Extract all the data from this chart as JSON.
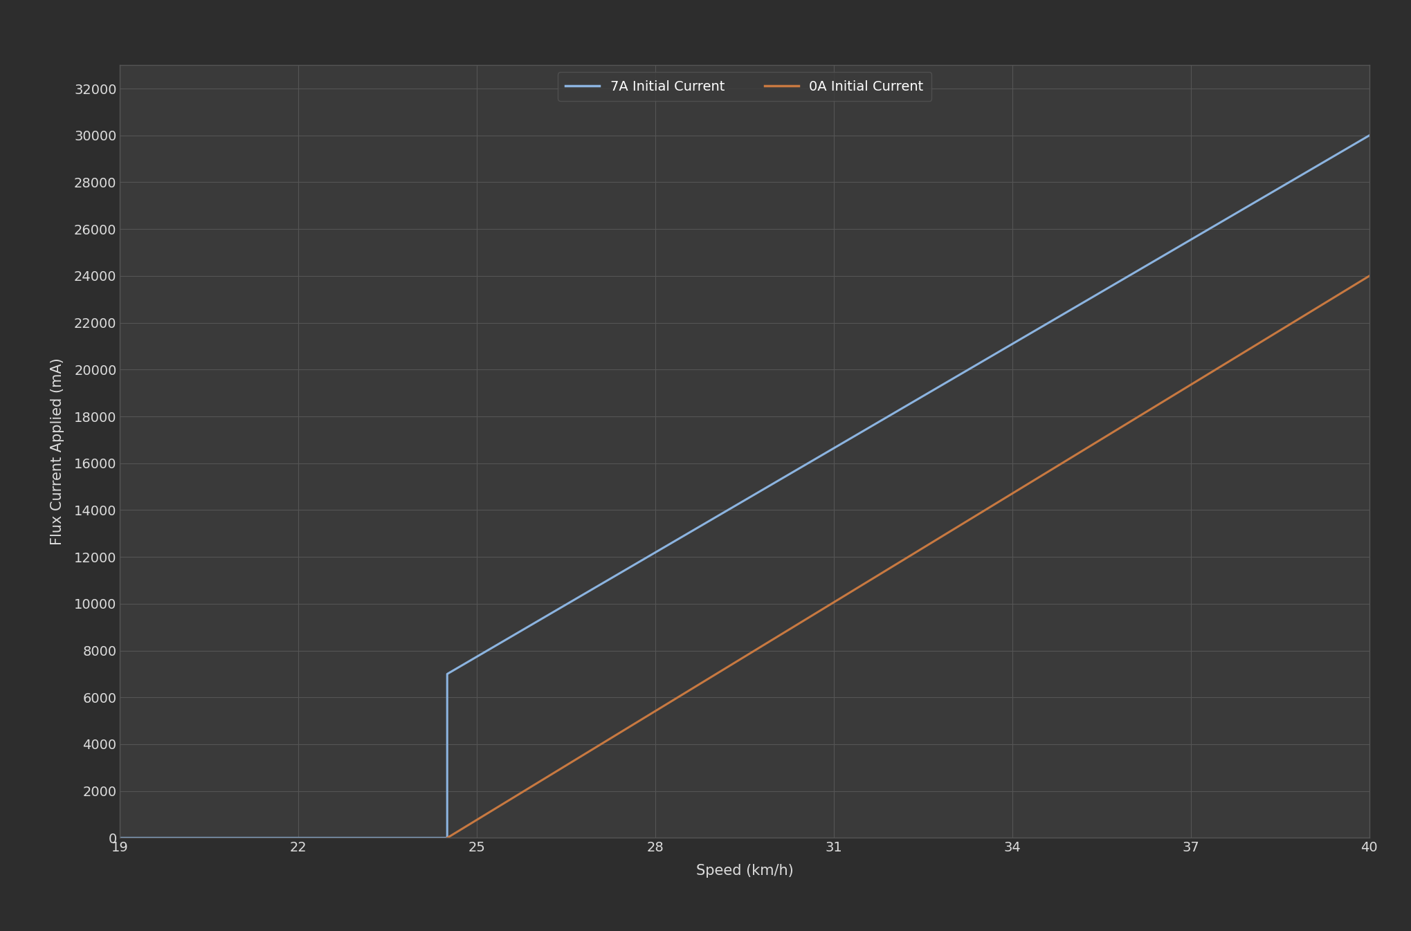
{
  "background_color": "#2d2d2d",
  "plot_bg_color": "#3a3a3a",
  "grid_color": "#555555",
  "xlabel": "Speed (km/h)",
  "ylabel": "Flux Current Applied (mA)",
  "xlim": [
    19,
    40
  ],
  "ylim": [
    0,
    33000
  ],
  "xticks": [
    19,
    22,
    25,
    28,
    31,
    34,
    37,
    40
  ],
  "yticks": [
    0,
    2000,
    4000,
    6000,
    8000,
    10000,
    12000,
    14000,
    16000,
    18000,
    20000,
    22000,
    24000,
    26000,
    28000,
    30000,
    32000
  ],
  "line_7A": {
    "x": [
      19,
      24.5,
      24.5,
      40
    ],
    "y": [
      0,
      0,
      7000,
      30000
    ],
    "color": "#8cb4e0",
    "linewidth": 2.2,
    "label": "7A Initial Current"
  },
  "line_0A": {
    "x": [
      24.5,
      40
    ],
    "y": [
      0,
      24000
    ],
    "color": "#c87941",
    "linewidth": 2.2,
    "label": "0A Initial Current"
  },
  "tick_color": "#dddddd",
  "label_color": "#dddddd",
  "legend_color": "#ffffff",
  "axis_label_fontsize": 15,
  "tick_fontsize": 14,
  "legend_fontsize": 14,
  "legend_marker_color_7A": "#8cb4e0",
  "legend_marker_color_0A": "#c87941"
}
